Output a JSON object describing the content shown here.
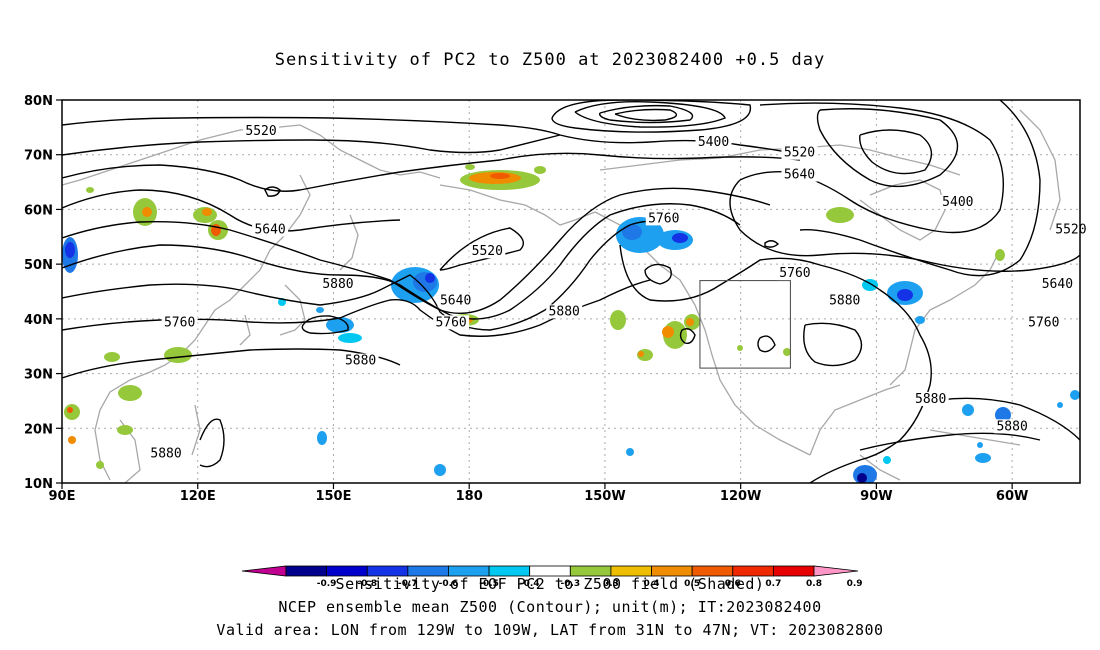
{
  "chart_data": {
    "type": "heatmap",
    "title": "Sensitivity of PC2 to Z500 at 2023082400 +0.5 day",
    "x_ticks": [
      "90E",
      "120E",
      "150E",
      "180",
      "150W",
      "120W",
      "90W",
      "60W"
    ],
    "y_ticks": [
      "10N",
      "20N",
      "30N",
      "40N",
      "50N",
      "60N",
      "70N",
      "80N"
    ],
    "x_range_deg_east": [
      90,
      315
    ],
    "y_range_deg_north": [
      10,
      80
    ],
    "grid": true,
    "contour_field": "NCEP ensemble mean Z500",
    "contour_unit": "m",
    "contour_labels": [
      {
        "value": "5520",
        "lon": 134,
        "lat": 74
      },
      {
        "value": "5400",
        "lon": 234,
        "lat": 72
      },
      {
        "value": "5520",
        "lon": 253,
        "lat": 70
      },
      {
        "value": "5640",
        "lon": 253,
        "lat": 66
      },
      {
        "value": "5400",
        "lon": 288,
        "lat": 61
      },
      {
        "value": "5520",
        "lon": 313,
        "lat": 56
      },
      {
        "value": "5760",
        "lon": 223,
        "lat": 58
      },
      {
        "value": "5640",
        "lon": 136,
        "lat": 56
      },
      {
        "value": "5520",
        "lon": 184,
        "lat": 52
      },
      {
        "value": "5760",
        "lon": 252,
        "lat": 48
      },
      {
        "value": "5640",
        "lon": 310,
        "lat": 46
      },
      {
        "value": "5880",
        "lon": 263,
        "lat": 43
      },
      {
        "value": "5880",
        "lon": 151,
        "lat": 46
      },
      {
        "value": "5640",
        "lon": 177,
        "lat": 43
      },
      {
        "value": "5880",
        "lon": 201,
        "lat": 41
      },
      {
        "value": "5760",
        "lon": 176,
        "lat": 39
      },
      {
        "value": "5760",
        "lon": 116,
        "lat": 39
      },
      {
        "value": "5760",
        "lon": 307,
        "lat": 39
      },
      {
        "value": "5880",
        "lon": 156,
        "lat": 32
      },
      {
        "value": "5880",
        "lon": 282,
        "lat": 25
      },
      {
        "value": "5880",
        "lon": 300,
        "lat": 20
      },
      {
        "value": "5880",
        "lon": 113,
        "lat": 15
      }
    ],
    "valid_area": {
      "lon": [
        231,
        251
      ],
      "lat": [
        31,
        47
      ]
    },
    "colorbar": {
      "labels": [
        "-0.9",
        "-0.8",
        "-0.7",
        "-0.6",
        "-0.5",
        "-0.4",
        "-0.3",
        "0.3",
        "0.4",
        "0.5",
        "0.6",
        "0.7",
        "0.8",
        "0.9"
      ],
      "colors": [
        "#c00090",
        "#00008c",
        "#0000cd",
        "#1432e6",
        "#1e78e6",
        "#1ea0f0",
        "#00c8f0",
        "#ffffff",
        "#96c83c",
        "#f0be00",
        "#f08c00",
        "#f05a00",
        "#f02800",
        "#e60000",
        "#ff96c8"
      ]
    }
  },
  "footer": {
    "line1": "Sensitivity of EOF PC2 to Z500 field (Shaded)",
    "line2": "NCEP ensemble mean Z500 (Contour); unit(m); IT:2023082400",
    "line3": "Valid area: LON from 129W to 109W, LAT from 31N to 47N; VT: 2023082800"
  }
}
